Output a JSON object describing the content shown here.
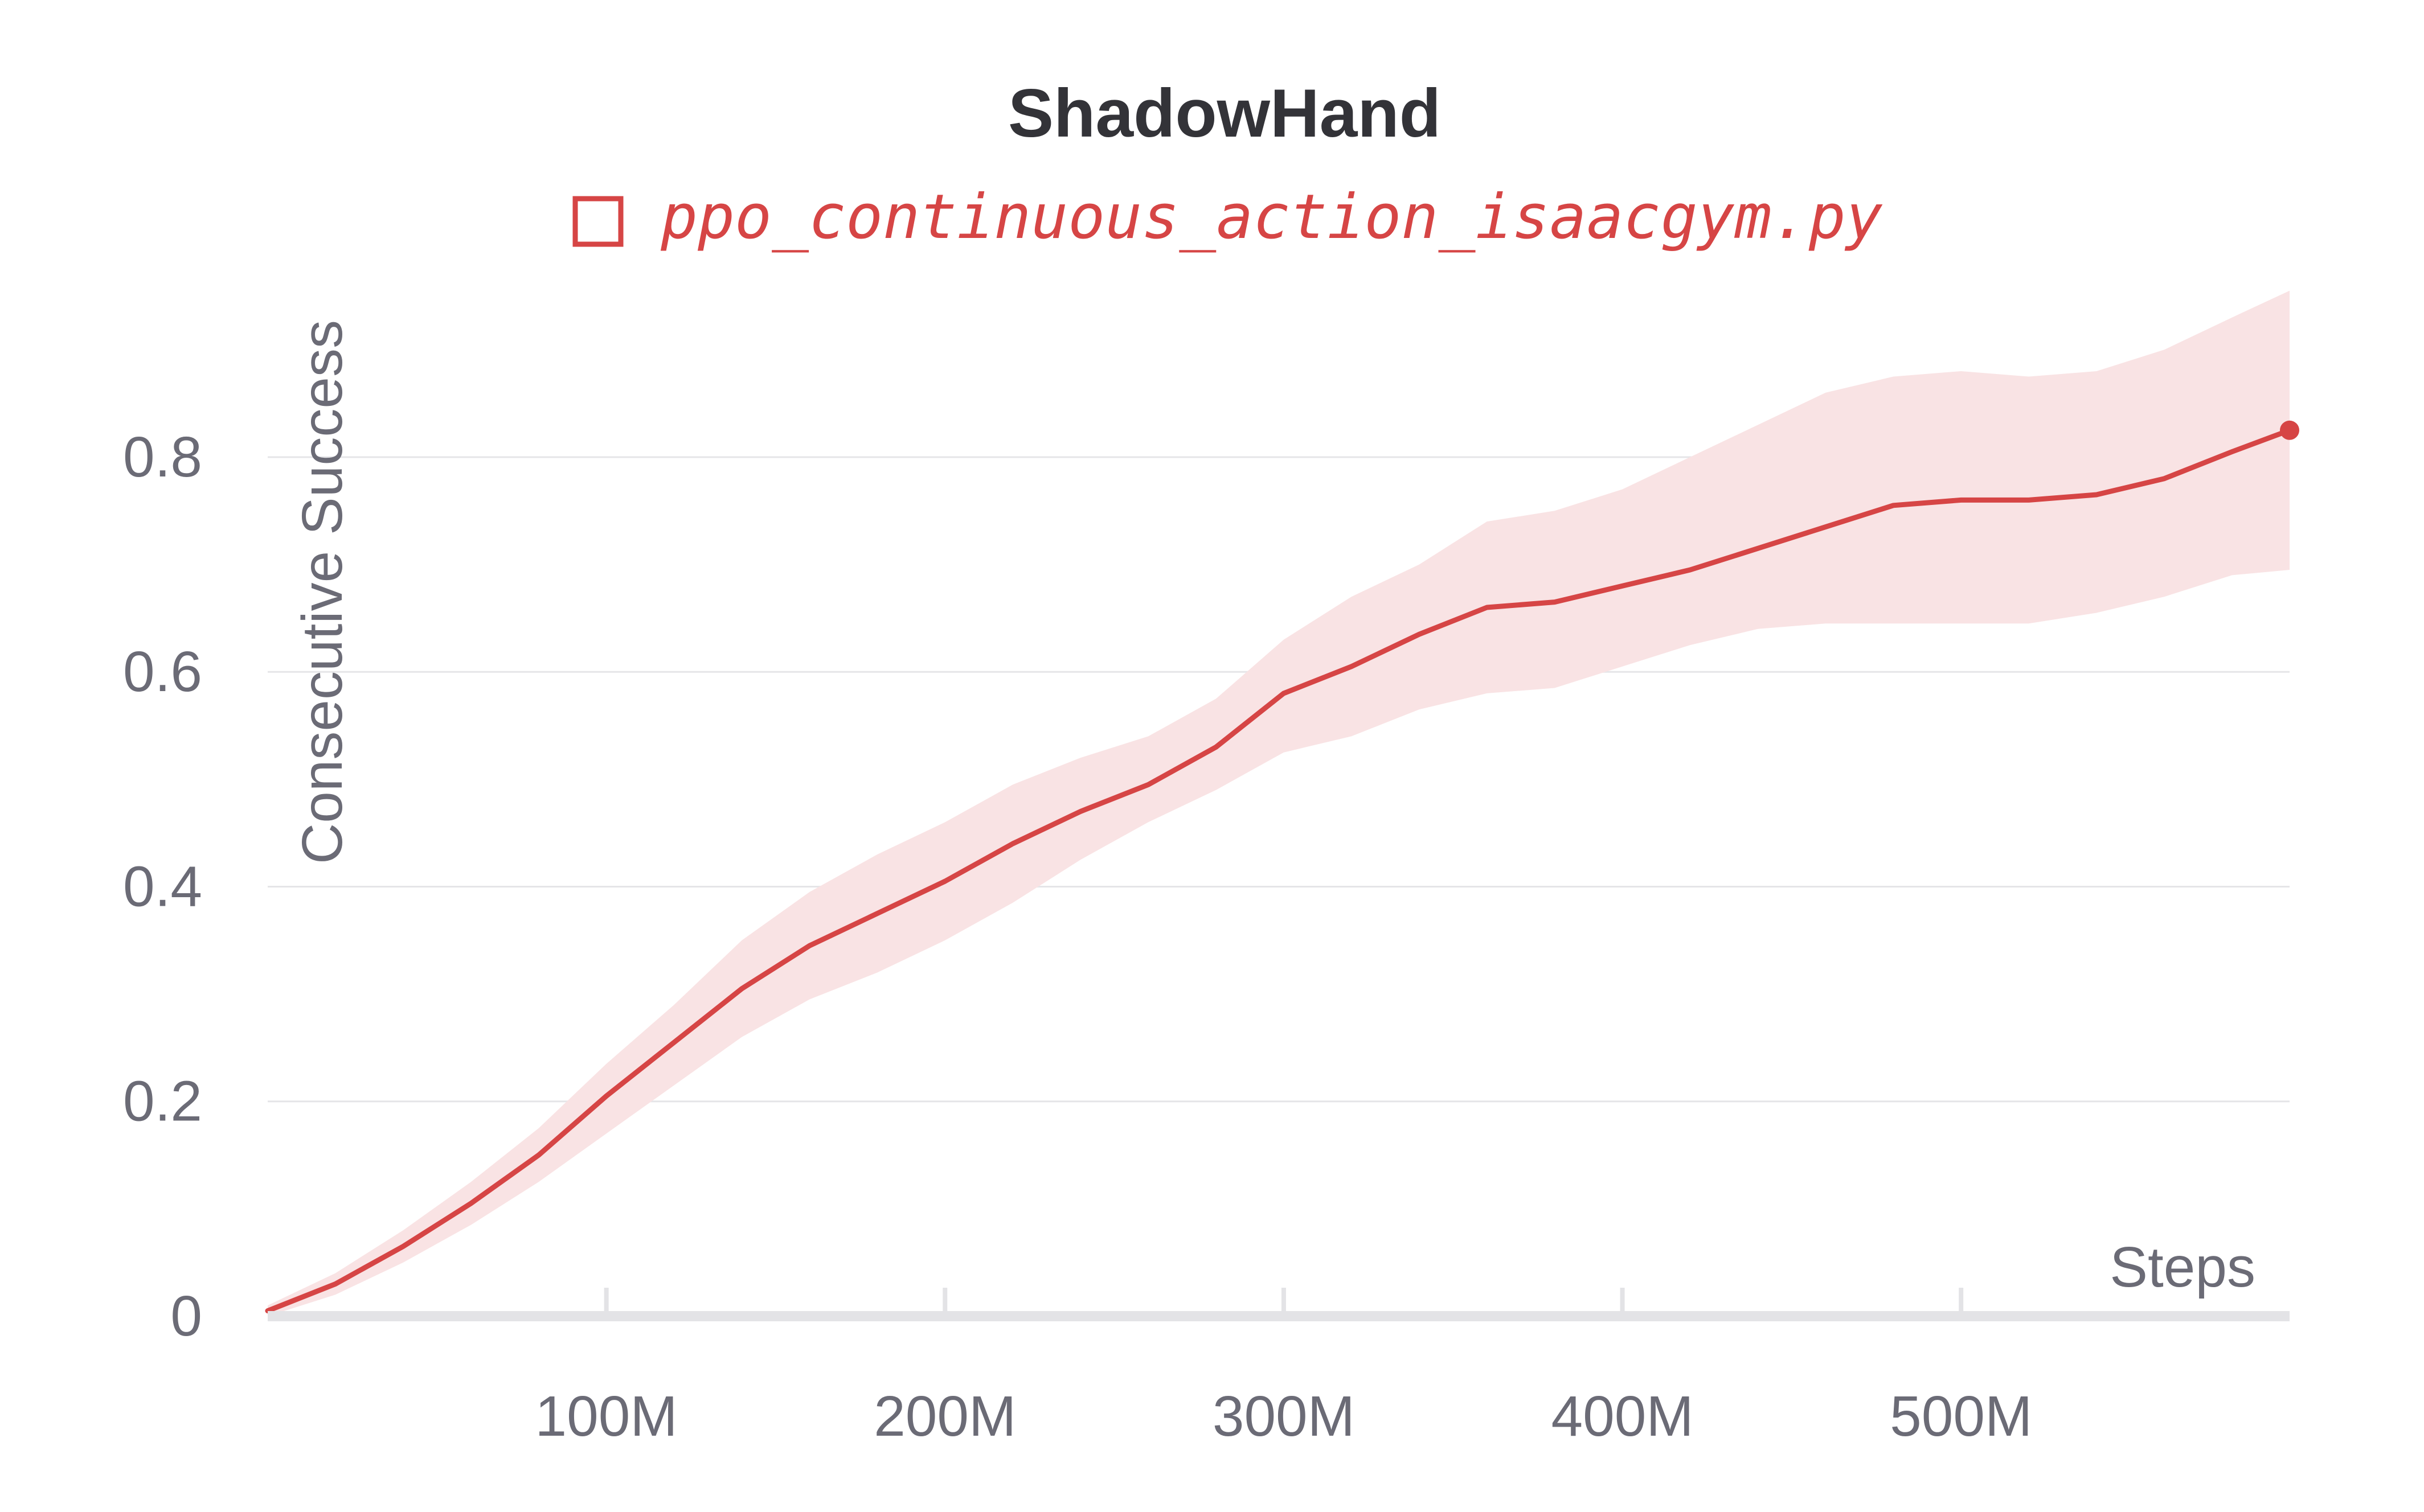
{
  "colors": {
    "series": "#d64545",
    "band": "#f9e3e4",
    "grid": "#e5e5e8",
    "axis": "#e3e3e6",
    "text": "#6b6b76",
    "title": "#333338"
  },
  "chart_data": {
    "type": "line",
    "title": "ShadowHand",
    "xlabel": "Steps",
    "ylabel": "Consecutive Success",
    "xlim": [
      0,
      597000000
    ],
    "ylim": [
      0,
      0.95
    ],
    "x_ticks": [
      100000000,
      200000000,
      300000000,
      400000000,
      500000000
    ],
    "x_tick_labels": [
      "100M",
      "200M",
      "300M",
      "400M",
      "500M"
    ],
    "y_ticks": [
      0,
      0.2,
      0.4,
      0.6,
      0.8
    ],
    "y_tick_labels": [
      "0",
      "0.2",
      "0.4",
      "0.6",
      "0.8"
    ],
    "grid": true,
    "legend_position": "top-center",
    "series": [
      {
        "name": "ppo_continuous_action_isaacgym.py",
        "x": [
          0,
          20000000,
          40000000,
          60000000,
          80000000,
          100000000,
          120000000,
          140000000,
          160000000,
          180000000,
          200000000,
          220000000,
          240000000,
          260000000,
          280000000,
          300000000,
          320000000,
          340000000,
          360000000,
          380000000,
          400000000,
          420000000,
          440000000,
          460000000,
          480000000,
          500000000,
          520000000,
          540000000,
          560000000,
          580000000,
          597000000
        ],
        "y": [
          0.005,
          0.03,
          0.065,
          0.105,
          0.15,
          0.205,
          0.255,
          0.305,
          0.345,
          0.375,
          0.405,
          0.44,
          0.47,
          0.495,
          0.53,
          0.58,
          0.605,
          0.635,
          0.66,
          0.665,
          0.68,
          0.695,
          0.715,
          0.735,
          0.755,
          0.76,
          0.76,
          0.765,
          0.78,
          0.805,
          0.825
        ],
        "lower": [
          0.0,
          0.02,
          0.05,
          0.085,
          0.125,
          0.17,
          0.215,
          0.26,
          0.295,
          0.32,
          0.35,
          0.385,
          0.425,
          0.46,
          0.49,
          0.525,
          0.54,
          0.565,
          0.58,
          0.585,
          0.605,
          0.625,
          0.64,
          0.645,
          0.645,
          0.645,
          0.645,
          0.655,
          0.67,
          0.69,
          0.695
        ],
        "upper": [
          0.01,
          0.04,
          0.08,
          0.125,
          0.175,
          0.235,
          0.29,
          0.35,
          0.395,
          0.43,
          0.46,
          0.495,
          0.52,
          0.54,
          0.575,
          0.63,
          0.67,
          0.7,
          0.74,
          0.75,
          0.77,
          0.8,
          0.83,
          0.86,
          0.875,
          0.88,
          0.875,
          0.88,
          0.9,
          0.93,
          0.955
        ]
      }
    ]
  }
}
